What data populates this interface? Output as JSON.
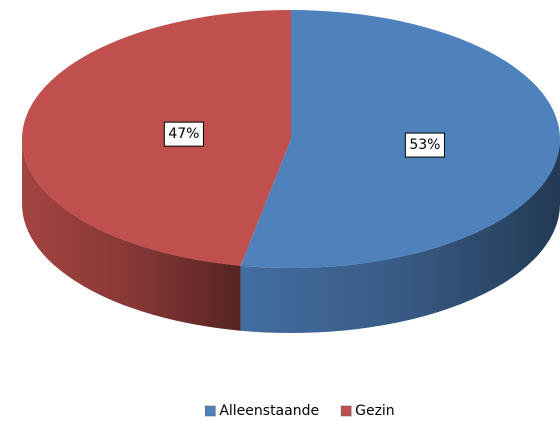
{
  "chart_data": {
    "type": "pie",
    "categories": [
      "Alleenstaande",
      "Gezin"
    ],
    "values": [
      53,
      47
    ],
    "value_labels": [
      "53%",
      "47%"
    ],
    "colors": [
      "#4f81bd",
      "#c0504d"
    ],
    "legend": "bottom"
  }
}
